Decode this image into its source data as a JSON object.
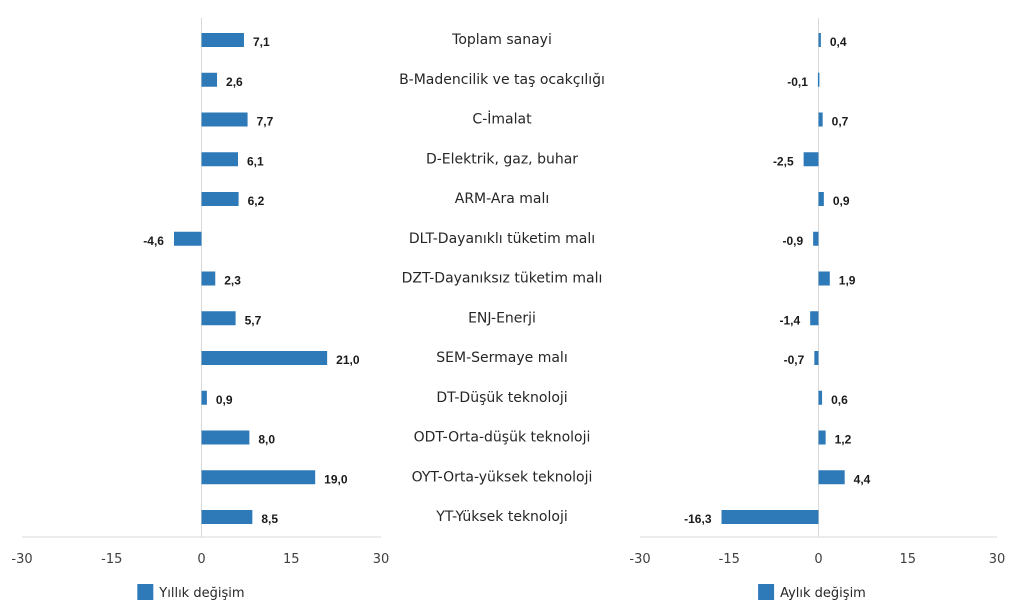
{
  "chart_data": [
    {
      "type": "bar",
      "orientation": "horizontal",
      "title": "",
      "legend": "Yıllık değişim",
      "legend_placement": "bottom",
      "xlim": [
        -30,
        30
      ],
      "xticks": [
        -30,
        -15,
        0,
        15,
        30
      ],
      "xtick_labels": [
        "-30",
        "-15",
        "0",
        "15",
        "30"
      ],
      "categories": [
        "Toplam sanayi",
        "B-Madencilik ve taş ocakçılığı",
        "C-İmalat",
        "D-Elektrik, gaz, buhar",
        "ARM-Ara malı",
        "DLT-Dayanıklı tüketim malı",
        "DZT-Dayanıksız tüketim malı",
        "ENJ-Enerji",
        "SEM-Sermaye malı",
        "DT-Düşük teknoloji",
        "ODT-Orta-düşük teknoloji",
        "OYT-Orta-yüksek teknoloji",
        "YT-Yüksek teknoloji"
      ],
      "values": [
        7.1,
        2.6,
        7.7,
        6.1,
        6.2,
        -4.6,
        2.3,
        5.7,
        21.0,
        0.9,
        8.0,
        19.0,
        8.5
      ],
      "value_labels": [
        "7,1",
        "2,6",
        "7,7",
        "6,1",
        "6,2",
        "-4,6",
        "2,3",
        "5,7",
        "21,0",
        "0,9",
        "8,0",
        "19,0",
        "8,5"
      ],
      "color": "#2e7ab8",
      "grid": false
    },
    {
      "type": "bar",
      "orientation": "horizontal",
      "title": "",
      "legend": "Aylık değişim",
      "legend_placement": "bottom",
      "xlim": [
        -30,
        30
      ],
      "xticks": [
        -30,
        -15,
        0,
        15,
        30
      ],
      "xtick_labels": [
        "-30",
        "-15",
        "0",
        "15",
        "30"
      ],
      "categories": [
        "Toplam sanayi",
        "B-Madencilik ve taş ocakçılığı",
        "C-İmalat",
        "D-Elektrik, gaz, buhar",
        "ARM-Ara malı",
        "DLT-Dayanıklı tüketim malı",
        "DZT-Dayanıksız tüketim malı",
        "ENJ-Enerji",
        "SEM-Sermaye malı",
        "DT-Düşük teknoloji",
        "ODT-Orta-düşük teknoloji",
        "OYT-Orta-yüksek teknoloji",
        "YT-Yüksek teknoloji"
      ],
      "values": [
        0.4,
        -0.1,
        0.7,
        -2.5,
        0.9,
        -0.9,
        1.9,
        -1.4,
        -0.7,
        0.6,
        1.2,
        4.4,
        -16.3
      ],
      "value_labels": [
        "0,4",
        "-0,1",
        "0,7",
        "-2,5",
        "0,9",
        "-0,9",
        "1,9",
        "-1,4",
        "-0,7",
        "0,6",
        "1,2",
        "4,4",
        "-16,3"
      ],
      "color": "#2e7ab8",
      "grid": false
    }
  ]
}
